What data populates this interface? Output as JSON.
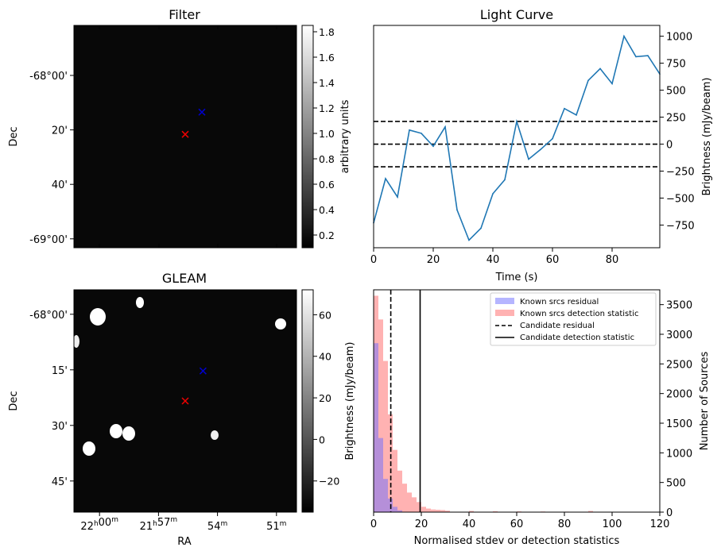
{
  "chart_data": [
    {
      "type": "heatmap",
      "panel": "filter",
      "title": "Filter",
      "xlabel": "",
      "ylabel": "Dec",
      "yticks": [
        "-68°00'",
        "20'",
        "40'",
        "-69°00'"
      ],
      "colorbar": {
        "label": "arbitrary units",
        "range": [
          0.1,
          1.85
        ],
        "ticks": [
          "0.2",
          "0.4",
          "0.6",
          "0.8",
          "1.0",
          "1.2",
          "1.4",
          "1.6",
          "1.8"
        ]
      },
      "markers": [
        {
          "symbol": "x",
          "color": "#0000cc",
          "label": "known source"
        },
        {
          "symbol": "x",
          "color": "#ee0000",
          "label": "candidate"
        }
      ]
    },
    {
      "type": "line",
      "panel": "light_curve",
      "title": "Light Curve",
      "xlabel": "Time (s)",
      "ylabel": "Brightness (mJy/beam)",
      "xlim": [
        0,
        96
      ],
      "ylim": [
        -960,
        1100
      ],
      "xticks": [
        "0",
        "20",
        "40",
        "60",
        "80"
      ],
      "yticks": [
        "−750",
        "−500",
        "−250",
        "0",
        "250",
        "500",
        "750",
        "1000"
      ],
      "series": [
        {
          "name": "light curve",
          "color": "#1f77b4",
          "x": [
            0,
            4,
            8,
            12,
            16,
            20,
            24,
            28,
            32,
            36,
            40,
            44,
            48,
            52,
            56,
            60,
            64,
            68,
            72,
            76,
            80,
            84,
            88,
            92,
            96
          ],
          "values": [
            -730,
            -320,
            -490,
            130,
            100,
            -20,
            160,
            -610,
            -890,
            -780,
            -460,
            -330,
            210,
            -140,
            -50,
            50,
            330,
            270,
            590,
            700,
            560,
            1000,
            810,
            820,
            650
          ]
        }
      ],
      "hlines": [
        {
          "y": 210,
          "style": "dashed"
        },
        {
          "y": 0,
          "style": "dashed"
        },
        {
          "y": -210,
          "style": "dashed"
        }
      ]
    },
    {
      "type": "heatmap",
      "panel": "gleam",
      "title": "GLEAM",
      "xlabel": "RA",
      "ylabel": "Dec",
      "xticks": [
        "22h00m",
        "21h57m",
        "54m",
        "51m"
      ],
      "yticks": [
        "-68°00'",
        "15'",
        "30'",
        "45'"
      ],
      "colorbar": {
        "label": "Brightness (mJy/beam)",
        "range": [
          -35,
          72
        ],
        "ticks": [
          "−20",
          "0",
          "20",
          "40",
          "60"
        ]
      },
      "markers": [
        {
          "symbol": "x",
          "color": "#0000cc",
          "label": "known source"
        },
        {
          "symbol": "x",
          "color": "#ee0000",
          "label": "candidate"
        }
      ]
    },
    {
      "type": "bar",
      "panel": "histogram",
      "xlabel": "Normalised stdev or detection statistics",
      "ylabel": "Number of Sources",
      "xlim": [
        0,
        120
      ],
      "ylim": [
        0,
        3750
      ],
      "bin_width": 2,
      "xticks": [
        "0",
        "20",
        "40",
        "60",
        "80",
        "100",
        "120"
      ],
      "yticks": [
        "0",
        "500",
        "1000",
        "1500",
        "2000",
        "2500",
        "3000",
        "3500"
      ],
      "series": [
        {
          "name": "Known srcs residual",
          "color": "#6b6bff",
          "bin_start": [
            0,
            2,
            4,
            6,
            8,
            10
          ],
          "values": [
            2850,
            1250,
            560,
            230,
            90,
            30
          ]
        },
        {
          "name": "Known srcs detection statistic",
          "color": "#ff7f7f",
          "bin_start": [
            0,
            2,
            4,
            6,
            8,
            10,
            12,
            14,
            16,
            18,
            20,
            22,
            24,
            26,
            28,
            30,
            40,
            50,
            60,
            70,
            80,
            90,
            100
          ],
          "values": [
            3650,
            3250,
            2550,
            1650,
            1050,
            700,
            480,
            330,
            250,
            170,
            90,
            60,
            45,
            40,
            35,
            25,
            20,
            15,
            12,
            10,
            8,
            20,
            5
          ]
        }
      ],
      "vlines": [
        {
          "x": 7.2,
          "style": "dashed",
          "label": "Candidate residual"
        },
        {
          "x": 19.5,
          "style": "solid",
          "label": "Candidate detection statistic"
        }
      ],
      "legend": [
        "Known srcs residual",
        "Known srcs detection statistic",
        "Candidate residual",
        "Candidate detection statistic"
      ],
      "legend_placement": "top-right"
    }
  ]
}
